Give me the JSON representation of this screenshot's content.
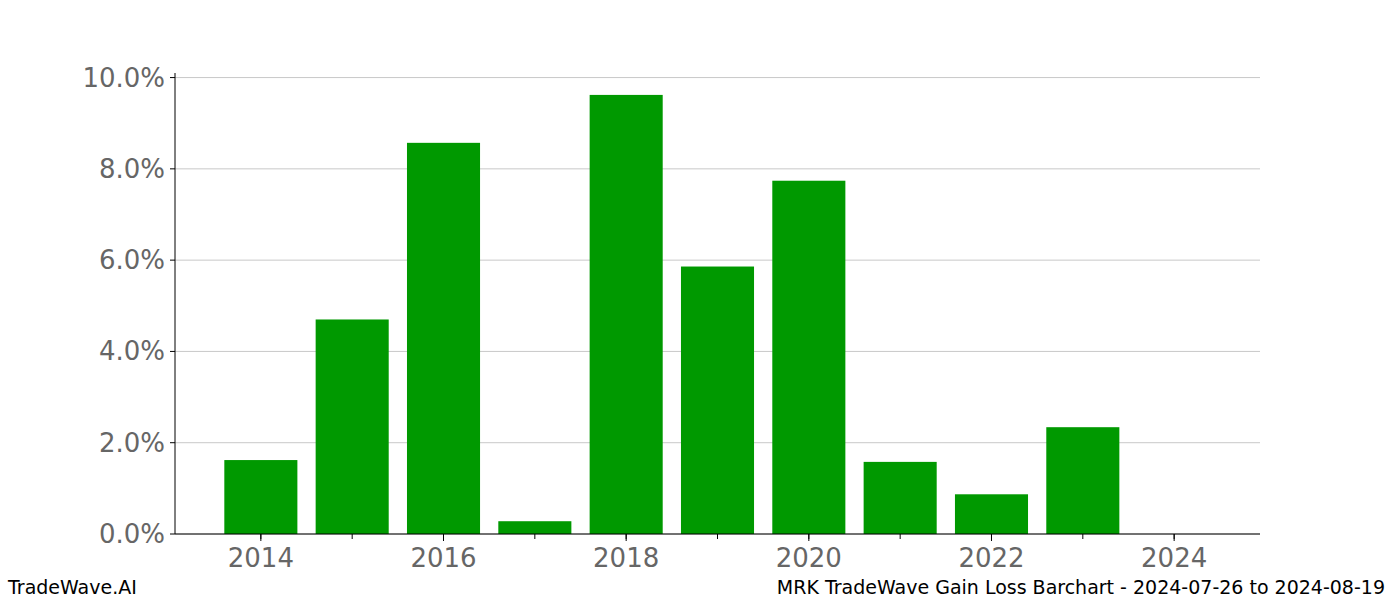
{
  "chart_data": {
    "type": "bar",
    "title": "MRK TradeWave Gain Loss Barchart - 2024-07-26 to 2024-08-19",
    "source": "TradeWave.AI",
    "x": [
      2014,
      2015,
      2016,
      2017,
      2018,
      2019,
      2020,
      2021,
      2022,
      2023,
      2024
    ],
    "values": [
      1.62,
      4.7,
      8.57,
      0.28,
      9.62,
      5.86,
      7.74,
      1.58,
      0.87,
      2.34,
      0
    ],
    "color": "#009900",
    "xlim": [
      2013.06,
      2024.94
    ],
    "xticks": [
      2014,
      2016,
      2018,
      2020,
      2022,
      2024
    ],
    "ylim": [
      0,
      10.1
    ],
    "yticks": [
      {
        "value": 0,
        "label": "0.0%"
      },
      {
        "value": 2,
        "label": "2.0%"
      },
      {
        "value": 4,
        "label": "4.0%"
      },
      {
        "value": 6,
        "label": "6.0%"
      },
      {
        "value": 8,
        "label": "8.0%"
      },
      {
        "value": 10,
        "label": "10.0%"
      }
    ],
    "grid": true
  }
}
